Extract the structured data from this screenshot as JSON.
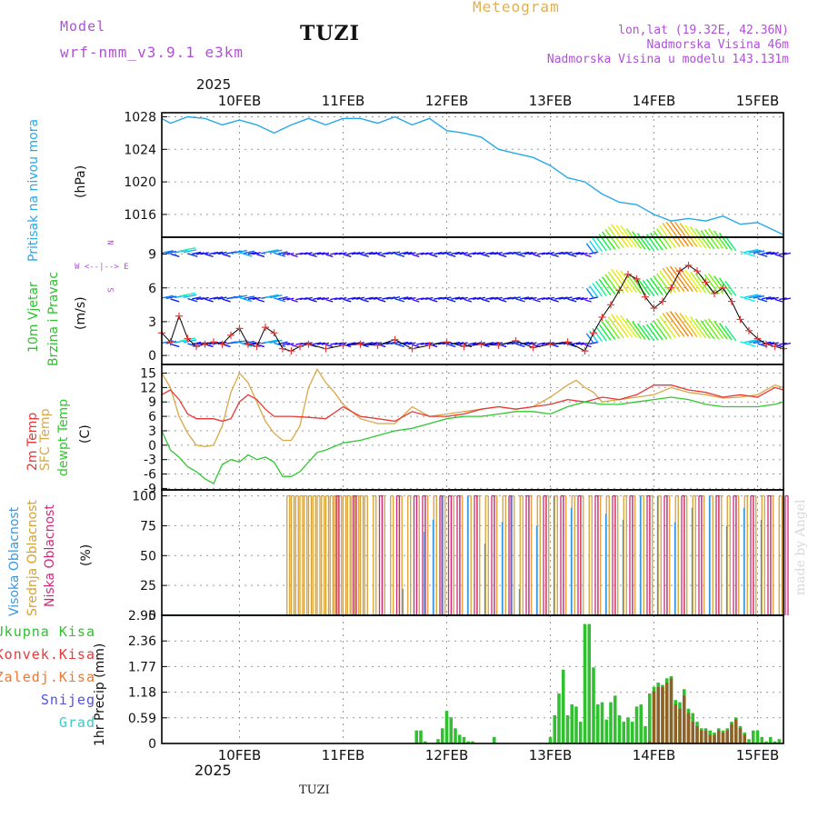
{
  "header": {
    "model_label": "Model",
    "model_name": "wrf-nmm_v3.9.1  e3km",
    "station": "TUZI",
    "product": "Meteogram",
    "lonlat": "lon,lat (19.32E, 42.36N)",
    "elevation": "Nadmorska Visina 46m",
    "model_elevation": "Nadmorska Visina u modelu 143.131m",
    "footer_station": "TUZI",
    "watermark": "made by Angel",
    "year": "2025"
  },
  "colors": {
    "purple": "#b050d8",
    "gold": "#e0b050",
    "pressure": "#28a8e8",
    "t2m": "#e83838",
    "tsfc": "#d8a848",
    "dewpt": "#30c830",
    "high_cloud": "#3898e0",
    "mid_cloud": "#d8a030",
    "low_cloud": "#d02878",
    "total_precip": "#30c030",
    "conv_precip": "#a05028"
  },
  "chart_data": [
    {
      "type": "line",
      "title": "Pritisak na nivou mora",
      "ylabel": "Pritisak na nivou mora",
      "yunit": "(hPa)",
      "ylim": [
        1013.2,
        1028.5
      ],
      "yticks": [
        "1016",
        "1020",
        "1024",
        "1028"
      ],
      "xlabels": [
        "10FEB",
        "11FEB",
        "12FEB",
        "13FEB",
        "14FEB",
        "15FEB"
      ],
      "x_hours_start": 6,
      "x_hours_end": 150,
      "grid": true,
      "series": [
        {
          "name": "pressure",
          "x": [
            6,
            8,
            12,
            16,
            20,
            24,
            28,
            32,
            36,
            40,
            44,
            48,
            52,
            56,
            60,
            64,
            68,
            72,
            76,
            80,
            84,
            88,
            92,
            96,
            100,
            104,
            108,
            112,
            116,
            120,
            124,
            128,
            132,
            136,
            140,
            144,
            148,
            150
          ],
          "values": [
            1027.8,
            1027.2,
            1028.0,
            1027.8,
            1027.0,
            1027.6,
            1027.0,
            1026.0,
            1027.0,
            1027.8,
            1027.0,
            1027.8,
            1027.8,
            1027.2,
            1028.0,
            1027.0,
            1027.8,
            1026.3,
            1026.0,
            1025.5,
            1024.0,
            1023.5,
            1023.0,
            1022.0,
            1020.5,
            1020.0,
            1018.5,
            1017.5,
            1017.2,
            1016.0,
            1015.2,
            1015.5,
            1015.2,
            1015.8,
            1014.8,
            1015.0,
            1014.0,
            1013.5
          ]
        }
      ]
    },
    {
      "type": "line",
      "title": "10m Vjetar Brzina i Pravac",
      "ylabel": "10m Vjetar",
      "ylabel2": "Brzina i Pravac",
      "yunit": "(m/s)",
      "ylim": [
        -0.8,
        10.5
      ],
      "yticks": [
        "0",
        "3",
        "6",
        "9"
      ],
      "compass": "N\n^\n|\nW <--|--> E\n|\nv\nS",
      "compass_n": "N",
      "compass_s": "S",
      "compass_we": "W <--|--> E",
      "grid": true,
      "series": [
        {
          "name": "wind speed",
          "x": [
            6,
            8,
            10,
            12,
            14,
            16,
            18,
            20,
            22,
            24,
            26,
            28,
            30,
            32,
            34,
            36,
            38,
            40,
            44,
            48,
            52,
            56,
            60,
            64,
            68,
            72,
            76,
            80,
            84,
            88,
            92,
            96,
            100,
            104,
            106,
            108,
            110,
            112,
            114,
            116,
            118,
            120,
            122,
            124,
            126,
            128,
            130,
            132,
            134,
            136,
            138,
            140,
            142,
            144,
            146,
            148,
            150
          ],
          "values": [
            2.0,
            1.2,
            3.5,
            1.5,
            0.8,
            1.0,
            1.2,
            1.0,
            1.8,
            2.4,
            1.0,
            0.8,
            2.5,
            2.0,
            0.6,
            0.4,
            0.8,
            1.0,
            0.6,
            0.9,
            1.0,
            0.9,
            1.4,
            0.6,
            0.9,
            1.2,
            0.8,
            1.0,
            0.9,
            1.3,
            0.7,
            1.0,
            1.2,
            0.4,
            2.0,
            3.4,
            4.5,
            5.8,
            7.2,
            6.8,
            5.2,
            4.2,
            4.8,
            6.0,
            7.5,
            8.0,
            7.5,
            6.5,
            5.5,
            6.0,
            4.8,
            3.2,
            2.2,
            1.5,
            1.0,
            0.8,
            0.6
          ]
        }
      ]
    },
    {
      "type": "line",
      "title": "2m Temp / SFC Temp / dewpt Temp",
      "ylabel": "2m Temp",
      "ylabel2": "SFC Temp",
      "ylabel3": "dewpt Temp",
      "yunit": "(C)",
      "ylim": [
        -9.3,
        16.8
      ],
      "yticks": [
        "-9",
        "-6",
        "-3",
        "0",
        "3",
        "6",
        "9",
        "12",
        "15"
      ],
      "grid": true,
      "series": [
        {
          "name": "2m Temp",
          "x": [
            6,
            8,
            10,
            12,
            14,
            16,
            18,
            20,
            22,
            24,
            26,
            28,
            30,
            32,
            36,
            40,
            44,
            48,
            52,
            56,
            60,
            64,
            68,
            72,
            76,
            80,
            84,
            88,
            92,
            96,
            100,
            104,
            108,
            112,
            116,
            120,
            124,
            128,
            132,
            136,
            140,
            144,
            148,
            150
          ],
          "values": [
            10.5,
            11.5,
            9.5,
            6.5,
            5.5,
            5.5,
            5.5,
            5.0,
            5.5,
            9.0,
            10.5,
            9.5,
            7.5,
            6.0,
            6.0,
            5.8,
            5.5,
            8.0,
            6.0,
            5.5,
            5.0,
            7.0,
            6.0,
            6.0,
            6.5,
            7.5,
            8.0,
            7.5,
            8.0,
            8.5,
            9.5,
            9.0,
            10.0,
            9.5,
            10.5,
            12.5,
            12.5,
            11.5,
            11.0,
            10.0,
            10.5,
            10.0,
            12.0,
            11.5
          ]
        },
        {
          "name": "SFC Temp",
          "x": [
            6,
            8,
            10,
            12,
            14,
            16,
            18,
            20,
            22,
            24,
            26,
            28,
            30,
            32,
            34,
            36,
            38,
            40,
            42,
            44,
            46,
            48,
            52,
            56,
            60,
            64,
            68,
            72,
            76,
            80,
            84,
            88,
            92,
            96,
            100,
            102,
            104,
            106,
            108,
            112,
            116,
            120,
            124,
            128,
            132,
            136,
            140,
            144,
            148,
            150
          ],
          "values": [
            15.0,
            12.0,
            6.0,
            2.5,
            0.0,
            -0.3,
            0.0,
            4.0,
            11.0,
            15.0,
            13.0,
            9.0,
            5.0,
            2.5,
            1.0,
            1.0,
            4.0,
            12.0,
            15.8,
            13.0,
            11.0,
            8.5,
            5.5,
            4.5,
            4.5,
            8.0,
            6.0,
            6.5,
            7.0,
            7.5,
            8.0,
            7.5,
            8.0,
            10.0,
            12.5,
            13.5,
            12.0,
            11.0,
            9.0,
            9.5,
            10.0,
            10.5,
            12.0,
            11.0,
            10.5,
            9.8,
            10.0,
            10.5,
            12.5,
            12.0
          ]
        },
        {
          "name": "dewpt Temp",
          "x": [
            6,
            8,
            10,
            12,
            14,
            16,
            18,
            20,
            22,
            24,
            26,
            28,
            30,
            32,
            34,
            36,
            38,
            40,
            42,
            44,
            48,
            52,
            56,
            60,
            64,
            68,
            72,
            76,
            80,
            84,
            88,
            92,
            96,
            100,
            104,
            108,
            112,
            116,
            120,
            124,
            128,
            132,
            136,
            140,
            144,
            148,
            150
          ],
          "values": [
            3.0,
            -1.0,
            -2.5,
            -4.5,
            -5.5,
            -7.0,
            -8.0,
            -4.0,
            -3.0,
            -3.5,
            -2.0,
            -3.0,
            -2.5,
            -3.5,
            -6.5,
            -6.5,
            -5.5,
            -3.5,
            -1.5,
            -1.0,
            0.5,
            1.0,
            2.0,
            3.0,
            3.5,
            4.5,
            5.5,
            6.0,
            6.0,
            6.5,
            7.0,
            7.0,
            6.5,
            8.0,
            9.0,
            8.5,
            8.5,
            9.0,
            9.5,
            10.0,
            9.5,
            8.5,
            8.0,
            8.0,
            8.0,
            8.5,
            9.0
          ]
        }
      ]
    },
    {
      "type": "bar",
      "title": "Visoka / Srednja / Niska Oblacnost",
      "ylabel": "Visoka Oblacnost",
      "ylabel2": "Srednja Oblacnost",
      "ylabel3": "Niska Oblacnost",
      "yunit": "(%)",
      "ylim": [
        0,
        105
      ],
      "yticks": [
        "0",
        "25",
        "50",
        "75",
        "100"
      ],
      "grid": true,
      "series": [
        {
          "name": "Srednja Oblacnost",
          "x": [
            35,
            36,
            37,
            38,
            39,
            40,
            41,
            42,
            43,
            44,
            45,
            46,
            47,
            48,
            49,
            50,
            51,
            52,
            53,
            55,
            57,
            59,
            61,
            63,
            65,
            67,
            69,
            71,
            73,
            75,
            77,
            79,
            81,
            83,
            85,
            87,
            89,
            91,
            93,
            95,
            97,
            99,
            101,
            103,
            105,
            107,
            109,
            111,
            113,
            115,
            117,
            119,
            121,
            123,
            125,
            127,
            129,
            131,
            133,
            135,
            137,
            139,
            141,
            143,
            145,
            147,
            149
          ],
          "values": [
            100,
            100,
            100,
            100,
            100,
            100,
            100,
            100,
            100,
            100,
            100,
            100,
            100,
            100,
            100,
            100,
            100,
            100,
            100,
            100,
            100,
            100,
            100,
            100,
            100,
            100,
            100,
            100,
            100,
            100,
            100,
            100,
            100,
            100,
            100,
            100,
            100,
            100,
            100,
            100,
            100,
            100,
            100,
            100,
            100,
            100,
            100,
            100,
            100,
            100,
            100,
            100,
            100,
            100,
            100,
            100,
            100,
            100,
            100,
            100,
            100,
            100,
            100,
            100,
            100,
            100,
            100
          ]
        },
        {
          "name": "Niska Oblacnost",
          "x": [
            46,
            50,
            56,
            60,
            64,
            66,
            70,
            72,
            74,
            78,
            82,
            86,
            90,
            94,
            98,
            102,
            106,
            110,
            114,
            118,
            122,
            126,
            130,
            134,
            138,
            142,
            146,
            150
          ],
          "values": [
            100,
            100,
            100,
            100,
            100,
            100,
            100,
            100,
            100,
            100,
            100,
            100,
            100,
            100,
            100,
            100,
            100,
            100,
            100,
            100,
            100,
            100,
            100,
            100,
            100,
            100,
            100,
            100
          ]
        },
        {
          "name": "Visoka Oblacnost",
          "x": [
            61,
            66,
            68,
            70,
            76,
            80,
            84,
            86,
            88,
            92,
            96,
            100,
            108,
            112,
            116,
            120,
            124,
            128,
            132,
            136,
            140,
            144
          ],
          "values": [
            22,
            70,
            80,
            100,
            100,
            60,
            78,
            100,
            22,
            75,
            100,
            90,
            85,
            80,
            100,
            100,
            78,
            90,
            100,
            75,
            90,
            80
          ]
        }
      ]
    },
    {
      "type": "bar",
      "title": "1hr Precip",
      "ylabel": "1hr Precip (mm)",
      "yunit": "(mm)",
      "ylim": [
        0,
        2.95
      ],
      "yticks": [
        "0",
        "0.59",
        "1.18",
        "1.77",
        "2.36",
        "2.95"
      ],
      "legend": [
        "Ukupna Kisa",
        "Konvek.Kisa",
        "Zaledj.Kisa",
        "Snijeg",
        "Grad"
      ],
      "legend_colors": [
        "#30c030",
        "#e83838",
        "#f07830",
        "#5050e0",
        "#40c8c8"
      ],
      "grid": true,
      "series": [
        {
          "name": "Ukupna Kisa",
          "x": [
            65,
            66,
            67,
            70,
            71,
            72,
            73,
            74,
            75,
            76,
            77,
            78,
            83,
            96,
            97,
            98,
            99,
            100,
            101,
            102,
            103,
            104,
            105,
            106,
            107,
            108,
            109,
            110,
            111,
            112,
            113,
            114,
            115,
            116,
            117,
            118,
            119,
            120,
            121,
            122,
            123,
            124,
            125,
            126,
            127,
            128,
            129,
            130,
            131,
            132,
            133,
            134,
            135,
            136,
            137,
            138,
            139,
            140,
            141,
            142,
            143,
            144,
            145,
            146,
            147,
            148,
            149
          ],
          "values": [
            0.3,
            0.3,
            0.05,
            0.1,
            0.35,
            0.75,
            0.6,
            0.35,
            0.2,
            0.15,
            0.05,
            0.05,
            0.15,
            0.15,
            0.65,
            1.15,
            1.7,
            0.65,
            0.9,
            0.85,
            0.5,
            2.75,
            2.75,
            1.75,
            0.9,
            0.95,
            0.55,
            0.95,
            1.1,
            0.65,
            0.5,
            0.6,
            0.5,
            0.85,
            0.9,
            0.4,
            1.15,
            1.3,
            1.4,
            1.35,
            1.5,
            1.55,
            1.0,
            0.95,
            1.25,
            0.8,
            0.7,
            0.5,
            0.35,
            0.35,
            0.3,
            0.25,
            0.35,
            0.3,
            0.35,
            0.5,
            0.6,
            0.4,
            0.25,
            0.1,
            0.3,
            0.3,
            0.15,
            0.05,
            0.15,
            0.05,
            0.1
          ]
        },
        {
          "name": "Konvek.Kisa",
          "x": [
            119,
            120,
            121,
            122,
            123,
            124,
            125,
            126,
            127,
            128,
            129,
            130,
            131,
            132,
            133,
            134,
            135,
            136,
            137,
            138,
            139,
            140,
            141
          ],
          "values": [
            0.05,
            1.2,
            1.3,
            1.3,
            1.4,
            1.5,
            0.9,
            0.8,
            1.1,
            0.7,
            0.5,
            0.4,
            0.3,
            0.3,
            0.2,
            0.2,
            0.3,
            0.25,
            0.3,
            0.45,
            0.55,
            0.35,
            0.2
          ]
        }
      ]
    }
  ]
}
